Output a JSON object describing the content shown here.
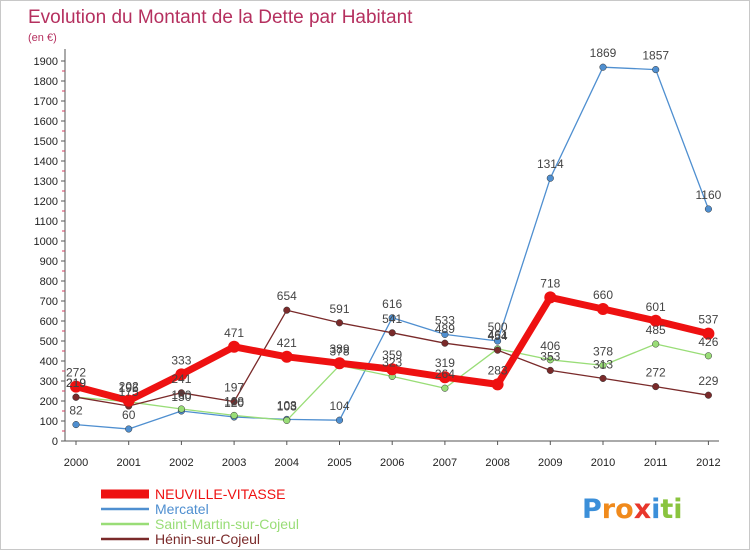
{
  "chart_data": {
    "type": "line",
    "title": "Evolution du Montant de la Dette par Habitant",
    "subtitle": "(en €)",
    "xlabel": "",
    "ylabel": "",
    "x": [
      "2000",
      "2001",
      "2002",
      "2003",
      "2004",
      "2005",
      "2006",
      "2007",
      "2008",
      "2009",
      "2010",
      "2011",
      "2012"
    ],
    "ylim": [
      0,
      1950
    ],
    "yticks": [
      0,
      100,
      200,
      300,
      400,
      500,
      600,
      700,
      800,
      900,
      1000,
      1100,
      1200,
      1300,
      1400,
      1500,
      1600,
      1700,
      1800,
      1900
    ],
    "grid": false,
    "legend_position": "bottom-left",
    "series": [
      {
        "name": "NEUVILLE-VITASSE",
        "color": "#ee1111",
        "values": [
          272,
          202,
          333,
          471,
          421,
          389,
          359,
          319,
          283,
          718,
          660,
          601,
          537
        ]
      },
      {
        "name": "Mercatel",
        "color": "#4f8fd0",
        "values": [
          82,
          60,
          150,
          120,
          108,
          104,
          616,
          533,
          500,
          1314,
          1869,
          1857,
          1160
        ]
      },
      {
        "name": "Saint-Martin-sur-Cojeul",
        "color": "#99dd77",
        "values": [
          219,
          196,
          160,
          128,
          103,
          378,
          323,
          264,
          461,
          406,
          378,
          485,
          426
        ]
      },
      {
        "name": "Hénin-sur-Cojeul",
        "color": "#7a2a2a",
        "values": [
          219,
          175,
          241,
          197,
          654,
          591,
          541,
          489,
          454,
          353,
          313,
          272,
          229
        ]
      }
    ],
    "data_labels": [
      {
        "series": 0,
        "values": [
          272,
          202,
          333,
          471,
          421,
          389,
          359,
          319,
          283,
          718,
          660,
          601,
          537
        ]
      },
      {
        "series": 1,
        "values": [
          82,
          60,
          150,
          120,
          108,
          104,
          616,
          533,
          500,
          1314,
          1869,
          1857,
          1160
        ]
      },
      {
        "series": 2,
        "values": [
          219,
          196,
          160,
          128,
          103,
          378,
          323,
          264,
          461,
          406,
          378,
          485,
          426
        ]
      },
      {
        "series": 3,
        "values": [
          219,
          175,
          241,
          197,
          654,
          591,
          541,
          489,
          454,
          353,
          313,
          272,
          229
        ]
      }
    ]
  },
  "brand": {
    "logo_text": "Proxiti",
    "letter_colors": [
      "#3b8fd9",
      "#f08a1c",
      "#f08a1c",
      "#e8372c",
      "#3b8fd9",
      "#8ac43f",
      "#8ac43f"
    ]
  }
}
